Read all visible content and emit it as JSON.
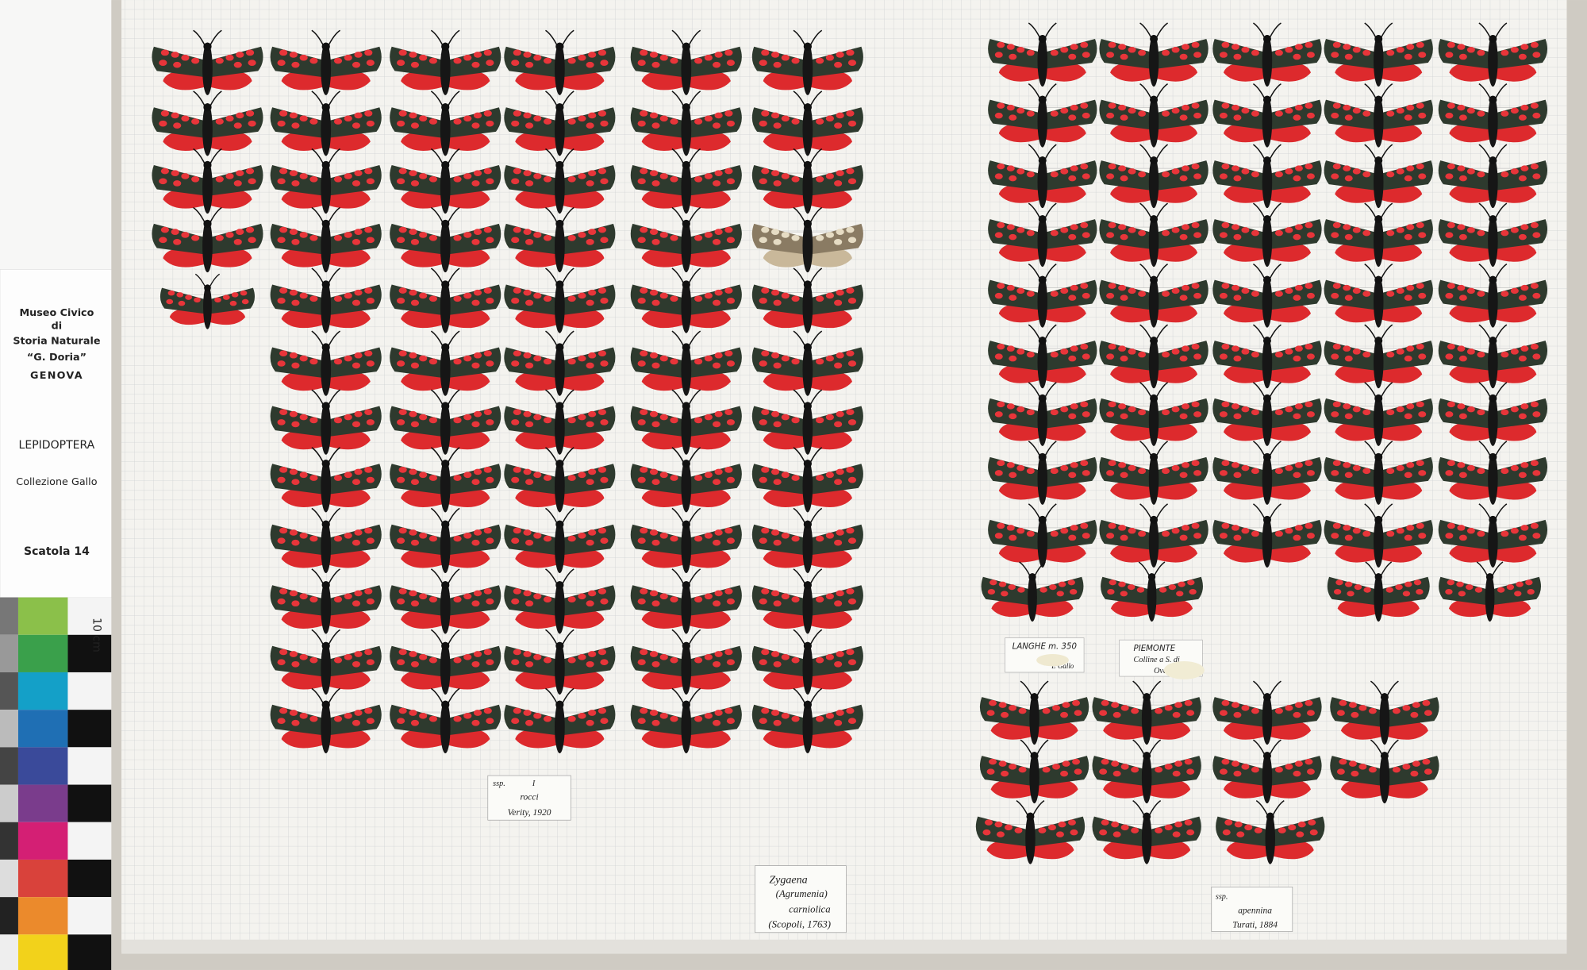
{
  "header": {
    "institution": [
      "Museo Civico",
      "di",
      "Storia Naturale",
      "“G. Doria”",
      "GENOVA"
    ],
    "order": "LEPIDOPTERA",
    "collection": "Collezione Gallo",
    "box": "Scatola 14",
    "scale": "10 cm"
  },
  "labels": {
    "ssp_left": [
      "ssp.",
      "I",
      "rocci",
      "Verity, 1920"
    ],
    "species": [
      "Zygaena",
      "(Agrumenia)",
      "carniolica",
      "(Scopoli, 1763)"
    ],
    "ssp_right": [
      "ssp.",
      "apennina",
      "Turati, 1884"
    ],
    "locality_1": [
      "LANGHE m. 350",
      "E Gallo"
    ],
    "locality_2": [
      "PIEMONTE",
      "Colline a S. di",
      "Ovada"
    ]
  }
}
